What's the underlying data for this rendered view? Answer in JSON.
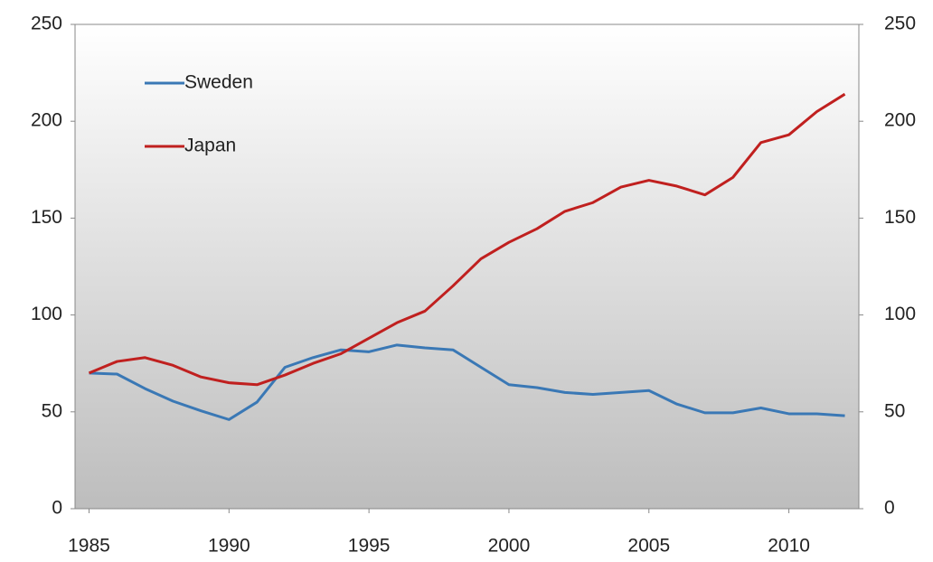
{
  "chart_data": {
    "type": "line",
    "x": [
      1985,
      1986,
      1987,
      1988,
      1989,
      1990,
      1991,
      1992,
      1993,
      1994,
      1995,
      1996,
      1997,
      1998,
      1999,
      2000,
      2001,
      2002,
      2003,
      2004,
      2005,
      2006,
      2007,
      2008,
      2009,
      2010,
      2011,
      2012
    ],
    "series": [
      {
        "name": "Sweden",
        "color": "#3a78b5",
        "values": [
          70,
          69.5,
          62,
          55.5,
          50.5,
          46,
          55,
          73,
          78,
          82,
          81,
          84.5,
          83,
          82,
          73,
          64,
          62.5,
          60,
          59,
          60,
          61,
          54,
          49.5,
          49.5,
          52,
          49,
          49,
          48
        ]
      },
      {
        "name": "Japan",
        "color": "#c0201f",
        "values": [
          70,
          76,
          78,
          74,
          68,
          65,
          64,
          69,
          75,
          80,
          88,
          96,
          102,
          115,
          129,
          137.5,
          144.5,
          153.5,
          158,
          166,
          169.5,
          166.5,
          162,
          171,
          189,
          193,
          205,
          214
        ]
      }
    ],
    "xlim": [
      1984.5,
      2012.5
    ],
    "xticks": [
      1985,
      1990,
      1995,
      2000,
      2005,
      2010
    ],
    "ylim": [
      0,
      250
    ],
    "yticks": [
      0,
      50,
      100,
      150,
      200,
      250
    ],
    "y2lim": [
      0,
      250
    ],
    "y2ticks": [
      0,
      50,
      100,
      150,
      200,
      250
    ],
    "legend": "upper left",
    "grid": false
  }
}
